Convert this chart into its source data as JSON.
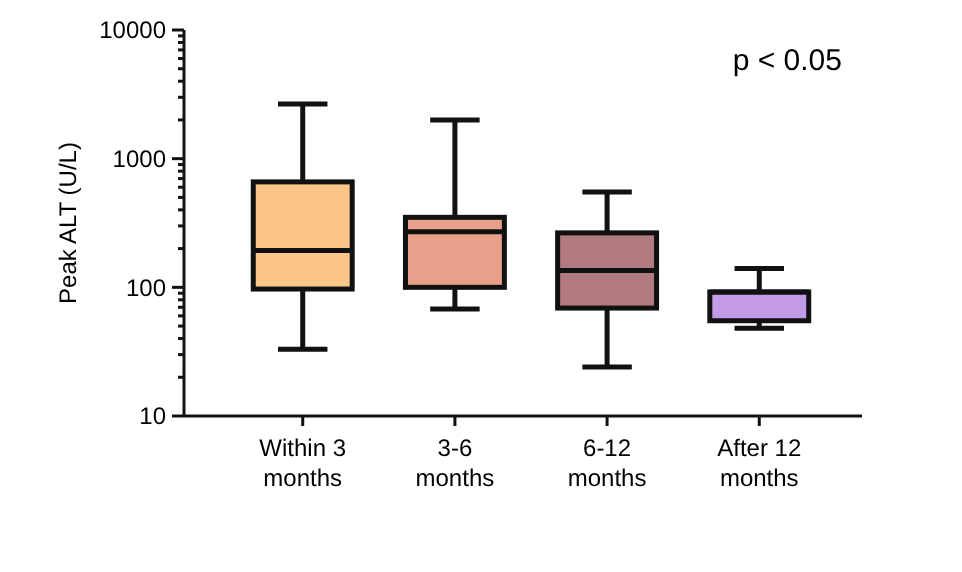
{
  "chart_data": {
    "type": "box",
    "categories": [
      "Within 3\nmonths",
      "3-6\nmonths",
      "6-12\nmonths",
      "After 12\nmonths"
    ],
    "colors": [
      "#fcc688",
      "#e9a08b",
      "#b07a7e",
      "#c49be6"
    ],
    "boxes": [
      {
        "low": 33,
        "q1": 97,
        "median": 193,
        "q3": 660,
        "high": 2660
      },
      {
        "low": 68,
        "q1": 100,
        "median": 270,
        "q3": 350,
        "high": 2000
      },
      {
        "low": 24,
        "q1": 69,
        "median": 135,
        "q3": 265,
        "high": 550
      },
      {
        "low": 48,
        "q1": 55,
        "median": 92,
        "q3": 92,
        "high": 140
      }
    ],
    "ylabel": "Peak ALT (U/L)",
    "log": true,
    "ylim": [
      10,
      10000
    ],
    "yticks": [
      10,
      {
        "value": 20,
        "label": null
      },
      {
        "value": 30,
        "label": null
      },
      {
        "value": 40,
        "label": null
      },
      {
        "value": 50,
        "label": null
      },
      {
        "value": 60,
        "label": null
      },
      {
        "value": 70,
        "label": null
      },
      {
        "value": 80,
        "label": null
      },
      {
        "value": 90,
        "label": null
      },
      100,
      {
        "value": 200,
        "label": null
      },
      {
        "value": 300,
        "label": null
      },
      {
        "value": 400,
        "label": null
      },
      {
        "value": 500,
        "label": null
      },
      {
        "value": 600,
        "label": null
      },
      {
        "value": 700,
        "label": null
      },
      {
        "value": 800,
        "label": null
      },
      {
        "value": 900,
        "label": null
      },
      1000,
      {
        "value": 2000,
        "label": null
      },
      {
        "value": 3000,
        "label": null
      },
      {
        "value": 4000,
        "label": null
      },
      {
        "value": 5000,
        "label": null
      },
      {
        "value": 6000,
        "label": null
      },
      {
        "value": 7000,
        "label": null
      },
      {
        "value": 8000,
        "label": null
      },
      {
        "value": 9000,
        "label": null
      },
      10000
    ],
    "annotations": [
      "p < 0.05"
    ]
  }
}
